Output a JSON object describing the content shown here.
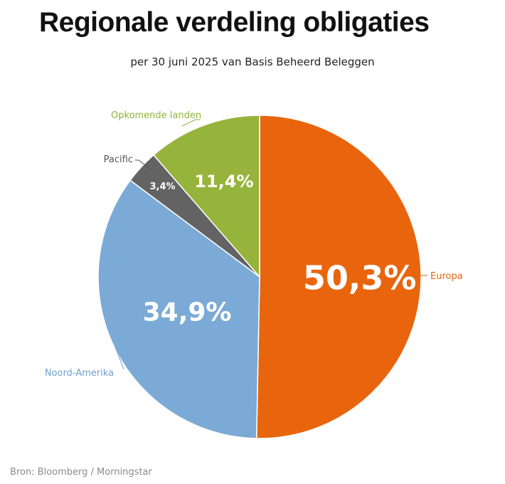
{
  "chart_data": {
    "type": "pie",
    "title": "Regionale verdeling obligaties",
    "subtitle": "per 30 juni 2025 van Basis Beheerd Beleggen",
    "source": "Bron: Bloomberg / Morningstar",
    "slices": [
      {
        "name": "Europa",
        "value": 50.3,
        "value_label": "50,3%",
        "color": "#e8650e",
        "label_color": "#e8650e"
      },
      {
        "name": "Noord-Amerika",
        "value": 34.9,
        "value_label": "34,9%",
        "color": "#7caad6",
        "label_color": "#6f9fd0"
      },
      {
        "name": "Pacific",
        "value": 3.4,
        "value_label": "3,4%",
        "color": "#636363",
        "label_color": "#555555"
      },
      {
        "name": "Opkomende landen",
        "value": 11.4,
        "value_label": "11,4%",
        "color": "#96b43b",
        "label_color": "#8db33a"
      }
    ]
  }
}
